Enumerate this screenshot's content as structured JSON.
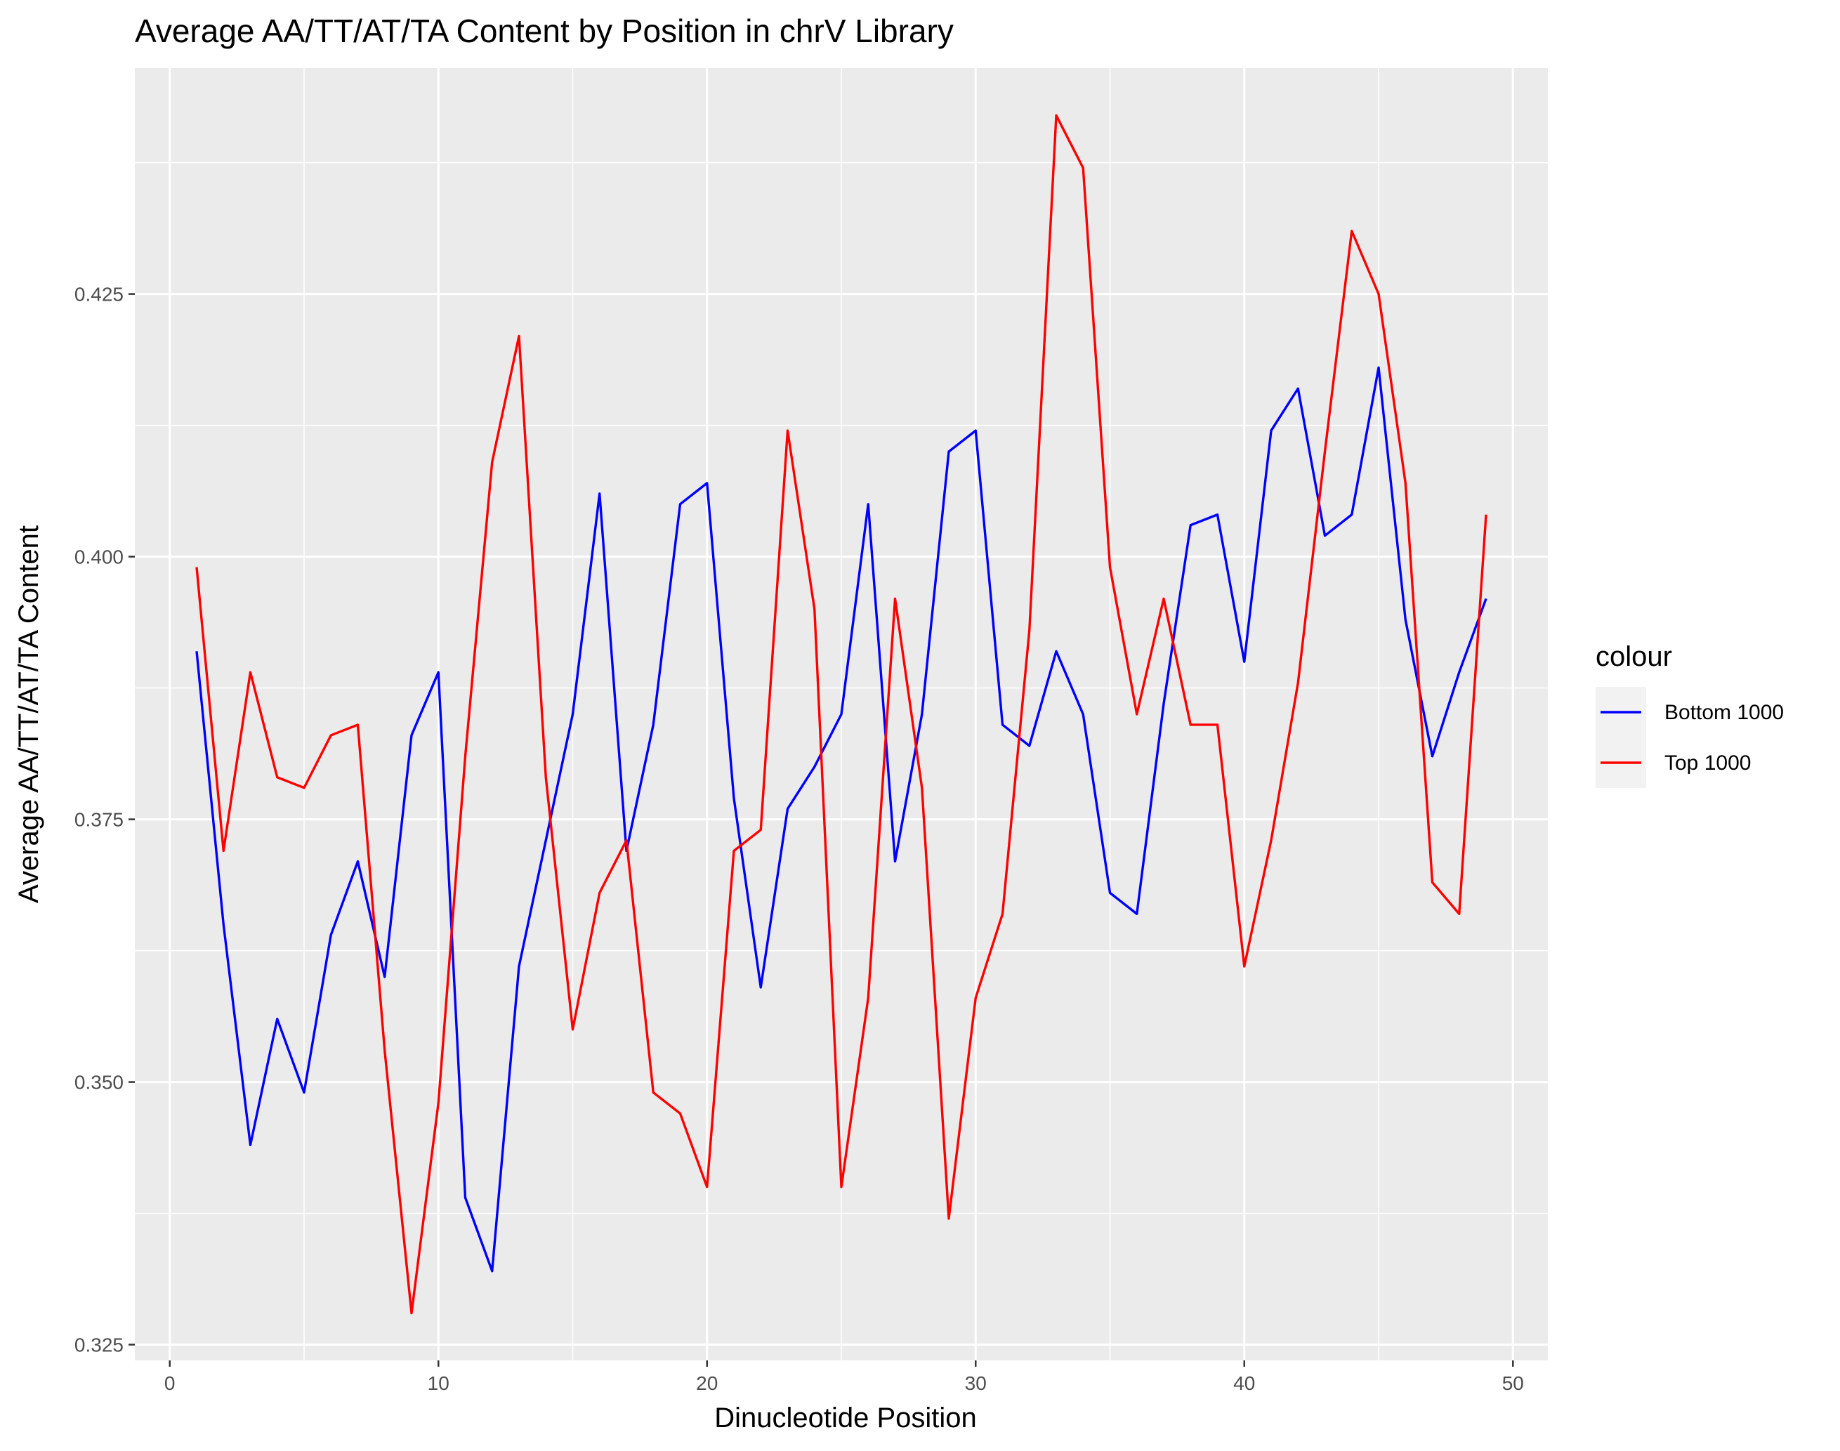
{
  "chart_data": {
    "type": "line",
    "title": "Average AA/TT/AT/TA Content by Position in chrV Library",
    "xlabel": "Dinucleotide Position",
    "ylabel": "Average AA/TT/AT/TA Content",
    "xlim": [
      -1.3,
      51.3
    ],
    "ylim": [
      0.3235,
      0.4465
    ],
    "x_ticks": [
      0,
      10,
      20,
      30,
      40,
      50
    ],
    "x_tick_labels": [
      "0",
      "10",
      "20",
      "30",
      "40",
      "50"
    ],
    "y_ticks": [
      0.325,
      0.35,
      0.375,
      0.4,
      0.425
    ],
    "y_tick_labels": [
      "0.325",
      "0.350",
      "0.375",
      "0.400",
      "0.425"
    ],
    "grid": true,
    "background": "#ebebeb",
    "legend": {
      "title": "colour",
      "position": "right"
    },
    "x": [
      1,
      2,
      3,
      4,
      5,
      6,
      7,
      8,
      9,
      10,
      11,
      12,
      13,
      14,
      15,
      16,
      17,
      18,
      19,
      20,
      21,
      22,
      23,
      24,
      25,
      26,
      27,
      28,
      29,
      30,
      31,
      32,
      33,
      34,
      35,
      36,
      37,
      38,
      39,
      40,
      41,
      42,
      43,
      44,
      45,
      46,
      47,
      48,
      49
    ],
    "series": [
      {
        "name": "Bottom 1000",
        "color": "#0000ff",
        "values": [
          0.391,
          0.365,
          0.344,
          0.356,
          0.349,
          0.364,
          0.371,
          0.36,
          0.383,
          0.389,
          0.339,
          0.332,
          0.361,
          0.373,
          0.385,
          0.406,
          0.372,
          0.384,
          0.405,
          0.407,
          0.377,
          0.359,
          0.376,
          0.38,
          0.385,
          0.405,
          0.371,
          0.385,
          0.41,
          0.412,
          0.384,
          0.382,
          0.391,
          0.385,
          0.368,
          0.366,
          0.386,
          0.403,
          0.404,
          0.39,
          0.412,
          0.416,
          0.402,
          0.404,
          0.418,
          0.394,
          0.381,
          0.389,
          0.396
        ]
      },
      {
        "name": "Top 1000",
        "color": "#ff0000",
        "values": [
          0.399,
          0.372,
          0.389,
          0.379,
          0.378,
          0.383,
          0.384,
          0.353,
          0.328,
          0.348,
          0.381,
          0.409,
          0.421,
          0.379,
          0.355,
          0.368,
          0.373,
          0.349,
          0.347,
          0.34,
          0.372,
          0.374,
          0.412,
          0.395,
          0.34,
          0.358,
          0.396,
          0.378,
          0.337,
          0.358,
          0.366,
          0.393,
          0.442,
          0.437,
          0.399,
          0.385,
          0.396,
          0.384,
          0.384,
          0.361,
          0.373,
          0.388,
          0.41,
          0.431,
          0.425,
          0.407,
          0.369,
          0.366,
          0.404
        ]
      }
    ]
  }
}
